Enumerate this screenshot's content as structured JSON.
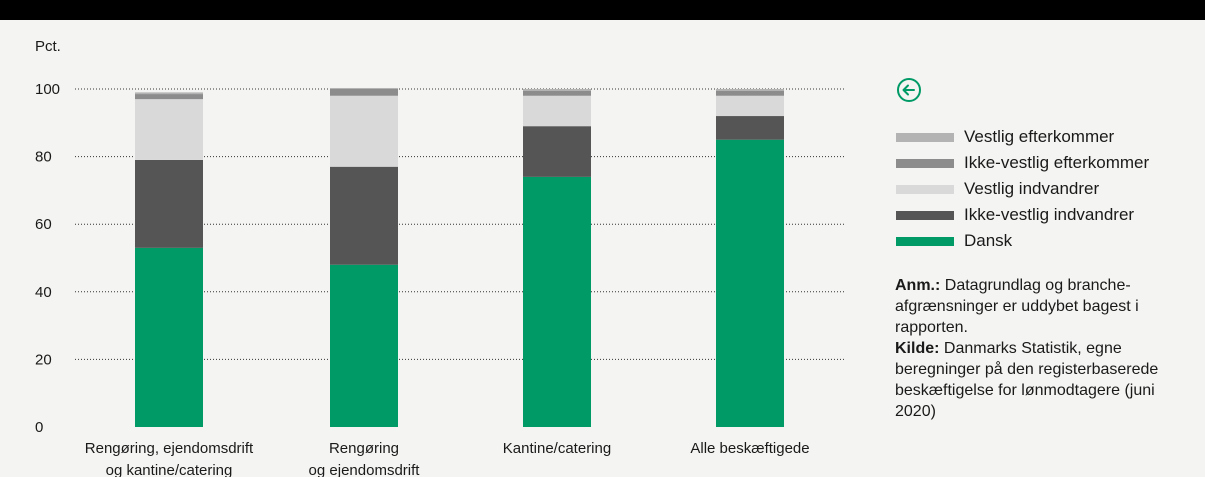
{
  "chart_data": {
    "type": "bar",
    "stacked": true,
    "ylabel": "Pct.",
    "ylim": [
      0,
      100
    ],
    "yticks": [
      0,
      20,
      40,
      60,
      80,
      100
    ],
    "grid": "horizontal dotted",
    "categories": [
      [
        "Rengøring, ejendomsdrift",
        "og kantine/catering"
      ],
      [
        "Rengøring",
        "og ejendomsdrift"
      ],
      [
        "Kantine/catering"
      ],
      [
        "Alle beskæftigede"
      ]
    ],
    "series": [
      {
        "name": "Dansk",
        "color": "#009a66",
        "values": [
          53,
          48,
          74,
          85
        ]
      },
      {
        "name": "Ikke-vestlig indvandrer",
        "color": "#555555",
        "values": [
          26,
          29,
          15,
          7
        ]
      },
      {
        "name": "Vestlig indvandrer",
        "color": "#d9d9d9",
        "values": [
          18,
          21,
          9,
          6
        ]
      },
      {
        "name": "Ikke-vestlig efterkommer",
        "color": "#8c8c8c",
        "values": [
          1.5,
          2,
          1.5,
          1.5
        ]
      },
      {
        "name": "Vestlig efterkommer",
        "color": "#b3b3b3",
        "values": [
          0.5,
          0.3,
          0.5,
          0.5
        ]
      }
    ],
    "legend_position": "right",
    "legend_order": [
      "Vestlig efterkommer",
      "Ikke-vestlig efterkommer",
      "Vestlig indvandrer",
      "Ikke-vestlig indvandrer",
      "Dansk"
    ]
  },
  "back_icon": {
    "name": "arrow-left-circle-icon",
    "color": "#009a66"
  },
  "notes": {
    "anm_label": "Anm.:",
    "anm_text": " Datagrundlag og branche-afgrænsninger er uddybet bagest i rapporten.",
    "kilde_label": "Kilde:",
    "kilde_text": " Danmarks Statistik, egne beregninger på den registerbaserede beskæftigelse for lønmodtagere (juni 2020)"
  }
}
